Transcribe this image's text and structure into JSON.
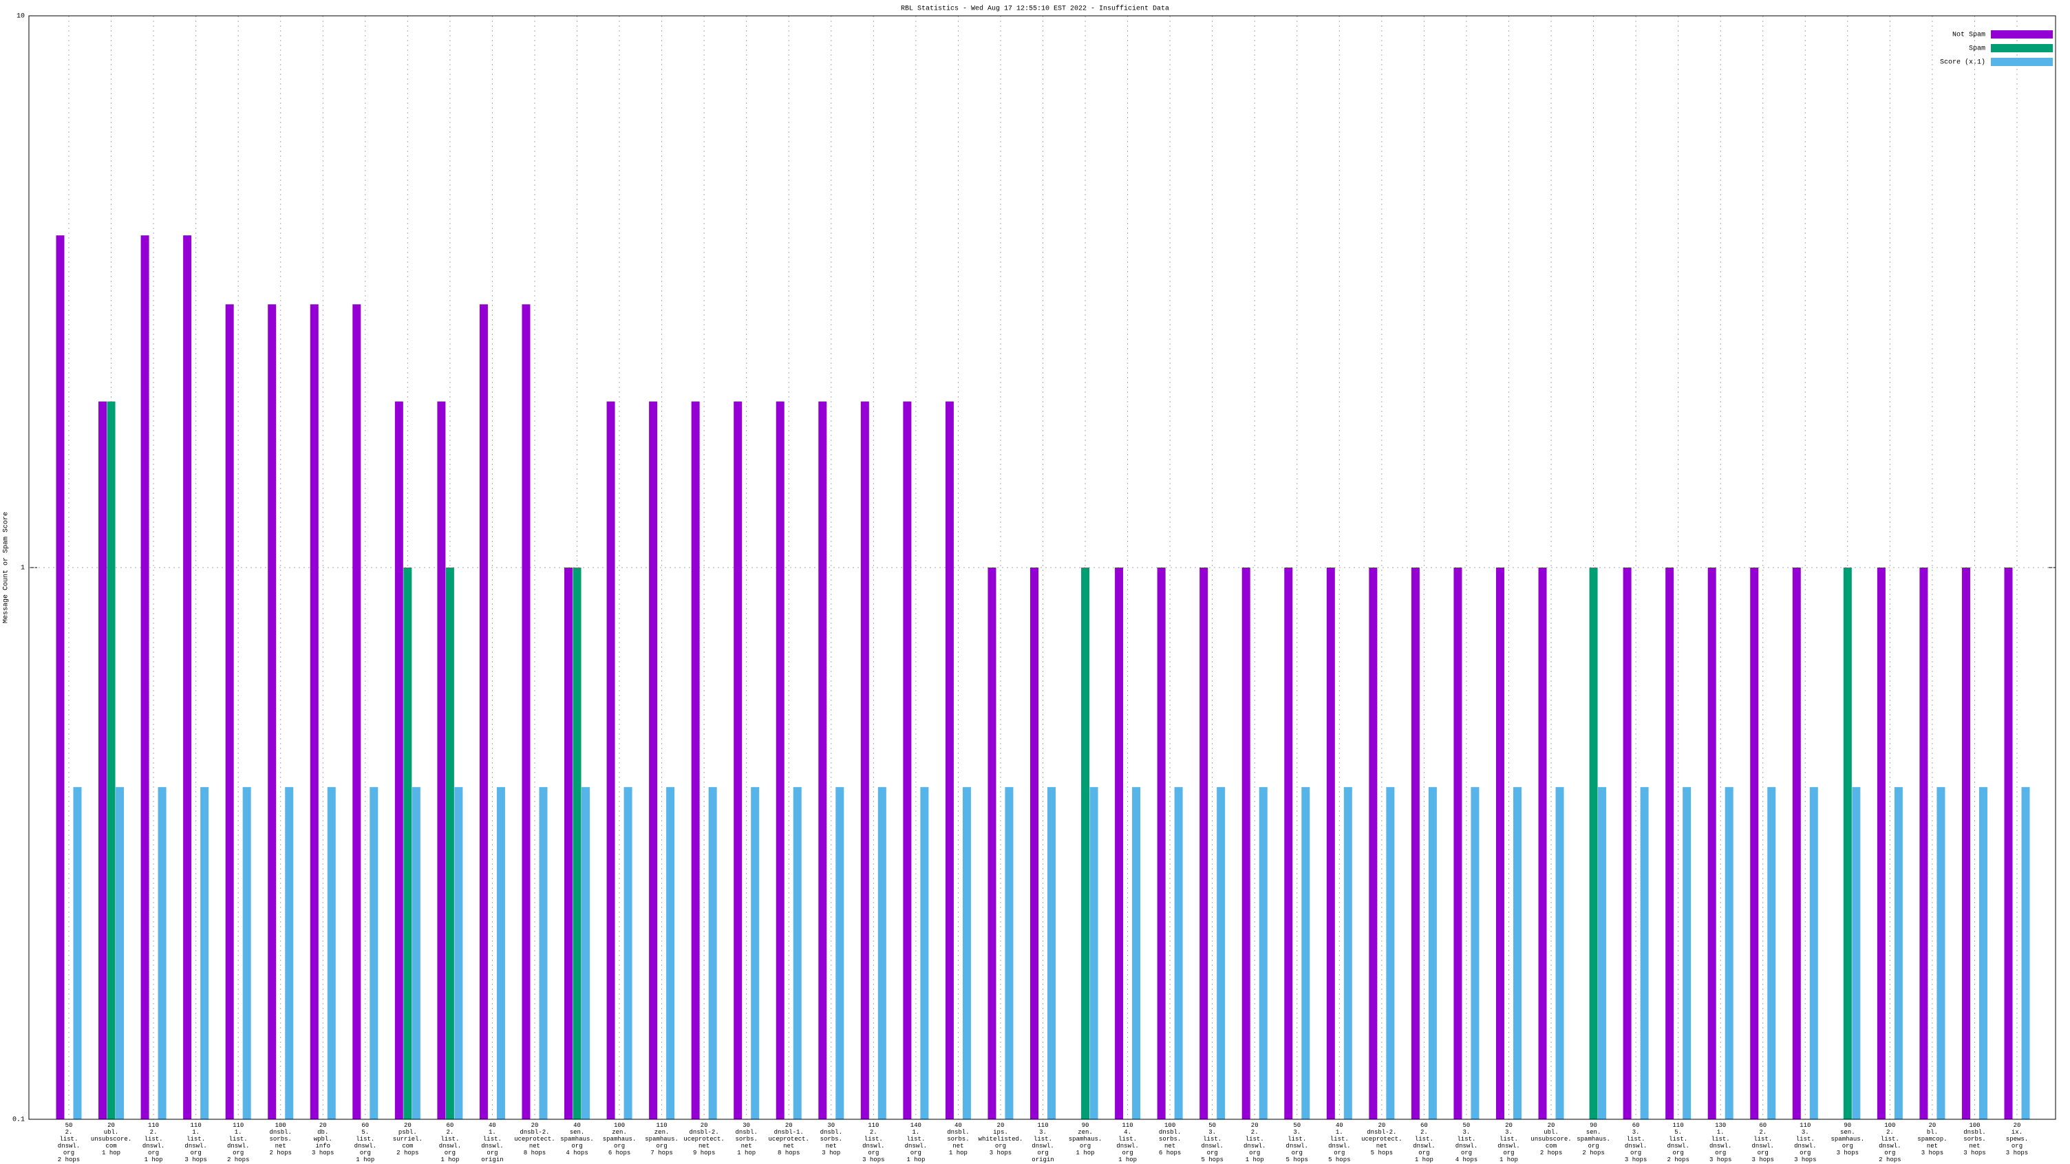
{
  "chart_data": {
    "type": "bar",
    "title": "RBL Statistics - Wed Aug 17 12:55:10 EST 2022 - Insufficient Data",
    "y_label": "Message Count or Spam Score",
    "log_scale": true,
    "grid": true,
    "legend": "top-right",
    "ylim": [
      0.1,
      10
    ],
    "yticks": [
      0.1,
      1,
      10
    ],
    "categories": [
      "50\n2.\nlist.\ndnswl.\norg\n2 hops",
      "20\nubl.\nunsubscore.\ncom\n1 hop",
      "110\n2.\nlist.\ndnswl.\norg\n1 hop",
      "110\n1.\nlist.\ndnswl.\norg\n3 hops",
      "110\n1.\nlist.\ndnswl.\norg\n2 hops",
      "100\ndnsbl.\nsorbs.\nnet\n2 hops",
      "20\ndb.\nwpbl.\ninfo\n3 hops",
      "60\n5.\nlist.\ndnswl.\norg\n1 hop",
      "20\npsbl.\nsurriel.\ncom\n2 hops",
      "60\n2.\nlist.\ndnswl.\norg\n1 hop",
      "40\n1.\nlist.\ndnswl.\norg\norigin",
      "20\ndnsbl-2.\nuceprotect.\nnet\n8 hops",
      "40\nsen.\nspamhaus.\norg\n4 hops",
      "100\nzen.\nspamhaus.\norg\n6 hops",
      "110\nzen.\nspamhaus.\norg\n7 hops",
      "20\ndnsbl-2.\nuceprotect.\nnet\n9 hops",
      "30\ndnsbl.\nsorbs.\nnet\n1 hop",
      "20\ndnsbl-1.\nuceprotect.\nnet\n8 hops",
      "30\ndnsbl.\nsorbs.\nnet\n3 hop",
      "110\n2.\nlist.\ndnswl.\norg\n3 hops",
      "140\n1.\nlist.\ndnswl.\norg\n1 hop",
      "40\ndnsbl.\nsorbs.\nnet\n1 hop",
      "20\nips.\nwhitelisted.\norg\n3 hops",
      "110\n3.\nlist.\ndnswl.\norg\norigin",
      "90\nzen.\nspamhaus.\norg\n1 hop",
      "110\n4.\nlist.\ndnswl.\norg\n1 hop",
      "100\ndnsbl.\nsorbs.\nnet\n6 hops",
      "50\n3.\nlist.\ndnswl.\norg\n5 hops",
      "20\n2.\nlist.\ndnswl.\norg\n1 hop",
      "50\n3.\nlist.\ndnswl.\norg\n5 hops",
      "40\n1.\nlist.\ndnswl.\norg\n5 hops",
      "20\ndnsbl-2.\nuceprotect.\nnet\n5 hops",
      "60\n2.\nlist.\ndnswl.\norg\n1 hop",
      "50\n3.\nlist.\ndnswl.\norg\n4 hops",
      "20\n3.\nlist.\ndnswl.\norg\n1 hop",
      "20\nubl.\nunsubscore.\ncom\n2 hops",
      "90\nsen.\nspamhaus.\norg\n2 hops",
      "60\n3.\nlist.\ndnswl.\norg\n3 hops",
      "110\n5.\nlist.\ndnswl.\norg\n2 hops",
      "130\n1.\nlist.\ndnswl.\norg\n3 hops",
      "60\n2.\nlist.\ndnswl.\norg\n3 hops",
      "110\n3.\nlist.\ndnswl.\norg\n3 hops",
      "90\nsen.\nspamhaus.\norg\n3 hops",
      "100\n2.\nlist.\ndnswl.\norg\n2 hops",
      "20\nbl.\nspamcop.\nnet\n3 hops",
      "100\ndnsbl.\nsorbs.\nnet\n3 hops",
      "20\nix.\nspews.\norg\n3 hops"
    ],
    "series": [
      {
        "name": "Not Spam",
        "color": "#9400d3",
        "values": [
          4,
          2,
          4,
          4,
          3,
          3,
          3,
          3,
          2,
          2,
          3,
          3,
          1,
          2,
          2,
          2,
          2,
          2,
          2,
          2,
          2,
          2,
          1,
          1,
          null,
          1,
          1,
          1,
          1,
          1,
          1,
          1,
          1,
          1,
          1,
          1,
          null,
          1,
          1,
          1,
          1,
          1,
          null,
          1,
          1,
          1,
          1
        ]
      },
      {
        "name": "Spam",
        "color": "#009e73",
        "values": [
          null,
          2,
          null,
          null,
          null,
          null,
          null,
          null,
          1,
          1,
          null,
          null,
          1,
          null,
          null,
          null,
          null,
          null,
          null,
          null,
          null,
          null,
          null,
          null,
          1,
          null,
          null,
          null,
          null,
          null,
          null,
          null,
          null,
          null,
          null,
          null,
          1,
          null,
          null,
          null,
          null,
          null,
          1,
          null,
          null,
          null,
          null
        ]
      },
      {
        "name": "Score (x.1)",
        "color": "#56b4e9",
        "values": [
          0.4,
          0.4,
          0.4,
          0.4,
          0.4,
          0.4,
          0.4,
          0.4,
          0.4,
          0.4,
          0.4,
          0.4,
          0.4,
          0.4,
          0.4,
          0.4,
          0.4,
          0.4,
          0.4,
          0.4,
          0.4,
          0.4,
          0.4,
          0.4,
          0.4,
          0.4,
          0.4,
          0.4,
          0.4,
          0.4,
          0.4,
          0.4,
          0.4,
          0.4,
          0.4,
          0.4,
          0.4,
          0.4,
          0.4,
          0.4,
          0.4,
          0.4,
          0.4,
          0.4,
          0.4,
          0.4,
          0.4
        ]
      }
    ]
  }
}
